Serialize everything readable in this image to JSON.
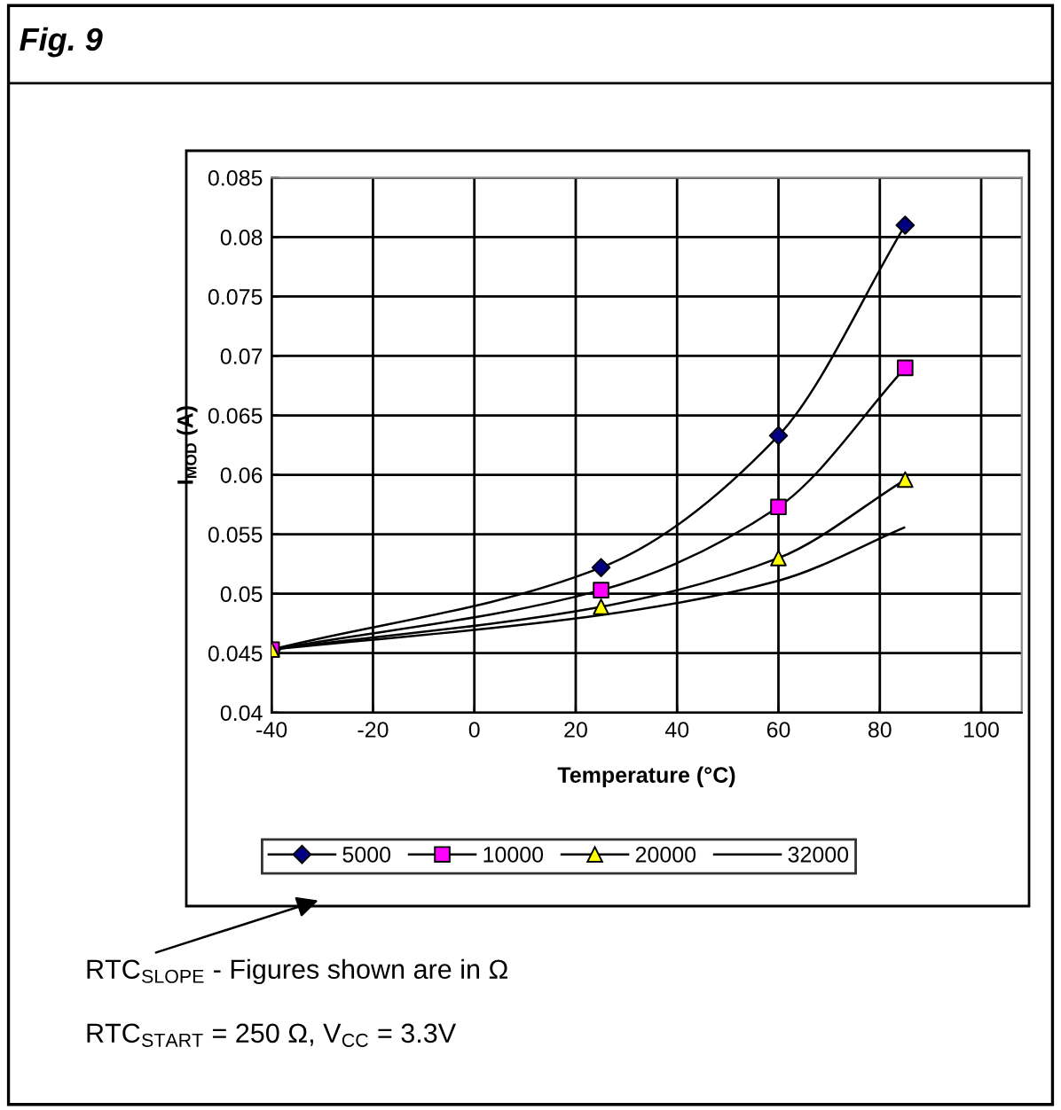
{
  "chart_data": {
    "type": "line",
    "title": "Fig. 9",
    "xlabel": "Temperature (°C)",
    "ylabel": "I$_{MOD}$ (A)",
    "x": [
      -40,
      25,
      60,
      85
    ],
    "series": [
      {
        "name": "5000",
        "color": "#000000",
        "colors": [
          "#000080",
          "#000080",
          "#000080",
          "#000080"
        ],
        "marker": "diamond",
        "values": [
          0.0453,
          0.0522,
          0.0633,
          0.081
        ]
      },
      {
        "name": "10000",
        "color": "#000000",
        "colors": [
          "#ff00ff",
          "#ff00ff",
          "#ff00ff",
          "#ff00ff"
        ],
        "marker": "square",
        "values": [
          0.0453,
          0.0503,
          0.0573,
          0.069
        ]
      },
      {
        "name": "20000",
        "color": "#000000",
        "colors": [
          "#ffff00",
          "#ffff00",
          "#ffff00",
          "#ffff00"
        ],
        "marker": "triangle",
        "values": [
          0.0453,
          0.0489,
          0.053,
          0.0596
        ]
      },
      {
        "name": "32000",
        "color": "#000000",
        "marker": "none",
        "values": [
          0.0453,
          0.0482,
          0.0511,
          0.0556
        ]
      }
    ],
    "xlim": [
      -40,
      108
    ],
    "xticks": [
      -40,
      -20,
      0,
      20,
      40,
      60,
      80,
      100
    ],
    "ylim": [
      0.04,
      0.085
    ],
    "yticks": [
      {
        "value": 0.04,
        "label": "0.04"
      },
      {
        "value": 0.045,
        "label": "0.045"
      },
      {
        "value": 0.05,
        "label": "0.05"
      },
      {
        "value": 0.055,
        "label": "0.055"
      },
      {
        "value": 0.06,
        "label": "0.06"
      },
      {
        "value": 0.065,
        "label": "0.065"
      },
      {
        "value": 0.07,
        "label": "0.07"
      },
      {
        "value": 0.075,
        "label": "0.075"
      },
      {
        "value": 0.08,
        "label": "0.08"
      },
      {
        "value": 0.085,
        "label": "0.085"
      }
    ],
    "grid": true,
    "legend": "bottom",
    "line_style": "solid",
    "annotations": [
      "RTC$_{SLOPE}$ - Figures shown are in Ω",
      "RTC$_{START}$ = 250 Ω, V$_{CC}$ = 3.3V"
    ]
  }
}
